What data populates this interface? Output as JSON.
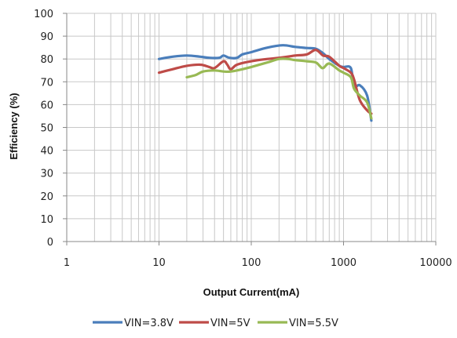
{
  "chart_data": {
    "type": "line",
    "title": "",
    "xlabel": "Output Current(mA)",
    "ylabel": "Efficiency (%)",
    "x_scale": "log",
    "xlim": [
      1,
      10000
    ],
    "ylim": [
      0,
      100
    ],
    "x_ticks": [
      "1",
      "10",
      "100",
      "1000",
      "10000"
    ],
    "y_ticks": [
      "0",
      "10",
      "20",
      "30",
      "40",
      "50",
      "60",
      "70",
      "80",
      "90",
      "100"
    ],
    "grid": "vertical log minor gridlines and horizontal gridlines every 10",
    "legend_position": "bottom",
    "series": [
      {
        "name": "VIN=3.8V",
        "color": "#4a7ebb",
        "points": [
          [
            10,
            80
          ],
          [
            14,
            81
          ],
          [
            20,
            81.5
          ],
          [
            28,
            81
          ],
          [
            35,
            80.5
          ],
          [
            45,
            80.5
          ],
          [
            50,
            81.5
          ],
          [
            58,
            80.5
          ],
          [
            70,
            80.5
          ],
          [
            80,
            82
          ],
          [
            100,
            83
          ],
          [
            150,
            85
          ],
          [
            220,
            86
          ],
          [
            300,
            85.3
          ],
          [
            400,
            84.8
          ],
          [
            500,
            84.5
          ],
          [
            600,
            82.5
          ],
          [
            700,
            80
          ],
          [
            900,
            77
          ],
          [
            1000,
            76.5
          ],
          [
            1200,
            76
          ],
          [
            1300,
            68
          ],
          [
            1500,
            68.5
          ],
          [
            1800,
            64
          ],
          [
            2000,
            53
          ]
        ]
      },
      {
        "name": "VIN=5V",
        "color": "#be4b48",
        "points": [
          [
            10,
            74
          ],
          [
            14,
            75.5
          ],
          [
            20,
            77
          ],
          [
            28,
            77.5
          ],
          [
            35,
            76.5
          ],
          [
            40,
            76
          ],
          [
            50,
            79
          ],
          [
            55,
            77.5
          ],
          [
            60,
            75.5
          ],
          [
            70,
            77.5
          ],
          [
            100,
            79
          ],
          [
            150,
            80
          ],
          [
            200,
            80.5
          ],
          [
            300,
            81.5
          ],
          [
            400,
            82
          ],
          [
            500,
            84
          ],
          [
            600,
            81.5
          ],
          [
            700,
            81
          ],
          [
            900,
            77
          ],
          [
            1000,
            76
          ],
          [
            1200,
            74
          ],
          [
            1300,
            71
          ],
          [
            1500,
            62
          ],
          [
            1800,
            57.5
          ],
          [
            2000,
            56
          ]
        ]
      },
      {
        "name": "VIN=5.5V",
        "color": "#98b954",
        "points": [
          [
            20,
            72
          ],
          [
            25,
            73
          ],
          [
            30,
            74.5
          ],
          [
            40,
            75
          ],
          [
            50,
            74.5
          ],
          [
            60,
            74.5
          ],
          [
            80,
            75.5
          ],
          [
            100,
            76.5
          ],
          [
            150,
            78.5
          ],
          [
            200,
            80
          ],
          [
            250,
            80
          ],
          [
            300,
            79.5
          ],
          [
            400,
            79
          ],
          [
            500,
            78.5
          ],
          [
            550,
            77
          ],
          [
            600,
            76
          ],
          [
            700,
            78
          ],
          [
            900,
            75
          ],
          [
            1000,
            74
          ],
          [
            1200,
            72
          ],
          [
            1300,
            67
          ],
          [
            1500,
            64
          ],
          [
            1800,
            61
          ],
          [
            2000,
            54
          ]
        ]
      }
    ]
  }
}
